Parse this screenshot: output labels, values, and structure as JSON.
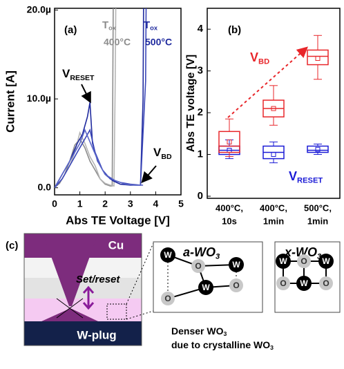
{
  "chart_data": [
    {
      "type": "line",
      "panel": "(a)",
      "x_label": "Abs TE Voltage [V]",
      "y_label": "Current [A]",
      "xlim": [
        0,
        5
      ],
      "xticks": [
        0,
        1,
        2,
        3,
        4,
        5
      ],
      "ylim": [
        -8e-07,
        2.02e-05
      ],
      "yticks": [
        {
          "value": 0,
          "label": "0.0"
        },
        {
          "value": 1e-05,
          "label": "10.0µ"
        },
        {
          "value": 2e-05,
          "label": "20.0µ"
        }
      ],
      "legend": [
        {
          "title": {
            "text": "T",
            "sub": "ox"
          },
          "name": "400°C",
          "color": "#8c8c8c"
        },
        {
          "title": {
            "text": "T",
            "sub": "ox"
          },
          "name": "500°C",
          "color": "#1f2a9e"
        }
      ],
      "series": [
        {
          "color": "#8c8c8c",
          "x": [
            0,
            0.2,
            0.4,
            0.6,
            0.8,
            1.0,
            1.2,
            1.4,
            1.6,
            1.8,
            2.0,
            2.2,
            2.28,
            2.3,
            2.32
          ],
          "values": [
            0,
            5e-07,
            1.5e-06,
            3e-06,
            4.8e-06,
            5.5e-06,
            4.5e-06,
            3e-06,
            2e-06,
            1e-06,
            4e-07,
            2e-07,
            2e-07,
            1e-05,
            2.02e-05
          ]
        },
        {
          "color": "#b4b4b4",
          "x": [
            0,
            0.3,
            0.6,
            0.8,
            1.0,
            1.2,
            1.4,
            1.6,
            1.8,
            2.0,
            2.2,
            2.35,
            2.4,
            2.42
          ],
          "values": [
            0,
            1e-06,
            2.5e-06,
            4e-06,
            6.2e-06,
            5e-06,
            3.5e-06,
            2.5e-06,
            1e-06,
            5e-07,
            3e-07,
            2e-07,
            1.2e-05,
            2.02e-05
          ]
        },
        {
          "color": "#1f2a9e",
          "x": [
            0,
            0.3,
            0.6,
            0.9,
            1.1,
            1.3,
            1.4,
            1.5,
            1.7,
            2.0,
            2.3,
            2.6,
            3.0,
            3.4,
            3.5,
            3.52
          ],
          "values": [
            0,
            1.5e-06,
            3e-06,
            5e-06,
            6e-06,
            8e-06,
            9.6e-06,
            5e-06,
            3e-06,
            1.5e-06,
            8e-07,
            4e-07,
            3e-07,
            3e-07,
            1e-05,
            2.02e-05
          ]
        },
        {
          "color": "#3a46b8",
          "x": [
            0,
            0.3,
            0.6,
            0.9,
            1.2,
            1.4,
            1.6,
            1.9,
            2.2,
            2.6,
            3.0,
            3.4,
            3.6,
            3.62
          ],
          "values": [
            0,
            1e-06,
            2.5e-06,
            4e-06,
            5.5e-06,
            6.5e-06,
            4e-06,
            2e-06,
            1e-06,
            6e-07,
            4e-07,
            3e-07,
            1.2e-05,
            2.02e-05
          ]
        },
        {
          "color": "#5a66c8",
          "x": [
            0,
            0.4,
            0.8,
            1.0,
            1.2,
            1.5,
            1.8,
            2.0,
            2.4,
            2.8,
            3.2,
            3.5
          ],
          "values": [
            0,
            2e-06,
            4e-06,
            5e-06,
            6.5e-06,
            4.5e-06,
            2.5e-06,
            1.5e-06,
            8e-07,
            4e-07,
            3e-07,
            3e-07
          ]
        }
      ],
      "annotations": [
        {
          "text": "V",
          "sub": "RESET"
        },
        {
          "text": "V",
          "sub": "BD"
        }
      ]
    },
    {
      "type": "box",
      "panel": "(b)",
      "y_label": "Abs TE voltage [V]",
      "categories": [
        [
          "400°C,",
          "10s"
        ],
        [
          "400°C,",
          "1min"
        ],
        [
          "500°C,",
          "1min"
        ]
      ],
      "ylim": [
        -0.05,
        4.5
      ],
      "yticks": [
        0,
        1,
        2,
        3,
        4
      ],
      "series": [
        {
          "name": "V",
          "name_sub": "RESET",
          "color": "#1a1ad6",
          "boxes": [
            {
              "min": 0.9,
              "q1": 1.0,
              "median": 1.1,
              "q3": 1.2,
              "max": 1.35,
              "mean": 1.1
            },
            {
              "min": 0.8,
              "q1": 0.9,
              "median": 1.05,
              "q3": 1.2,
              "max": 1.3,
              "mean": 1.0
            },
            {
              "min": 1.0,
              "q1": 1.05,
              "median": 1.1,
              "q3": 1.2,
              "max": 1.25,
              "mean": 1.12
            }
          ]
        },
        {
          "name": "V",
          "name_sub": "BD",
          "color": "#e8262a",
          "boxes": [
            {
              "min": 0.95,
              "q1": 1.05,
              "median": 1.2,
              "q3": 1.55,
              "max": 1.85,
              "mean": 1.3
            },
            {
              "min": 1.7,
              "q1": 1.9,
              "median": 2.1,
              "q3": 2.3,
              "max": 2.65,
              "mean": 2.1
            },
            {
              "min": 2.8,
              "q1": 3.15,
              "median": 3.35,
              "q3": 3.5,
              "max": 3.85,
              "mean": 3.3
            }
          ]
        }
      ]
    }
  ],
  "diagram": {
    "label": "(c)",
    "top_layer": "Cu",
    "bottom_layer": "W-plug",
    "action": "Set/reset",
    "amorphous": {
      "title": {
        "text": "a-WO",
        "sub": "3"
      },
      "atoms": [
        "W",
        "O",
        "W",
        "W",
        "O",
        "O"
      ]
    },
    "crystalline": {
      "title": {
        "text": "x-WO",
        "sub": "3"
      },
      "atoms": [
        "W",
        "O",
        "W",
        "O",
        "W",
        "O"
      ]
    },
    "caption": [
      {
        "text": "Denser WO",
        "sub": "3"
      },
      {
        "text": "due to crystalline WO",
        "sub": "3"
      }
    ]
  }
}
